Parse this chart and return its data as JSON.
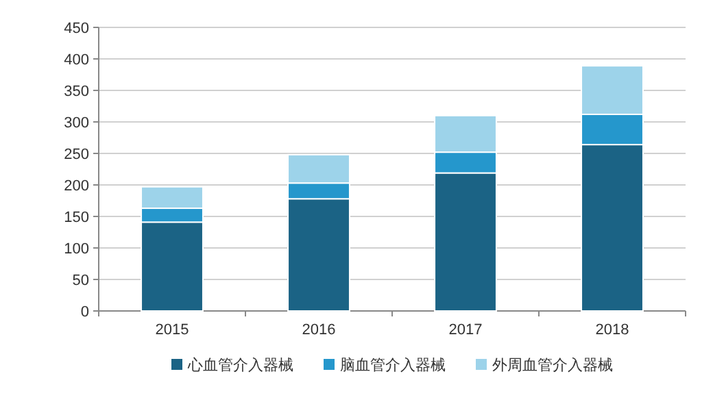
{
  "chart_data": {
    "type": "bar",
    "stacked": true,
    "categories": [
      "2015",
      "2016",
      "2017",
      "2018"
    ],
    "series": [
      {
        "name": "心血管介入器械",
        "color": "#1b6385",
        "values": [
          141,
          178,
          219,
          264
        ]
      },
      {
        "name": "脑血管介入器械",
        "color": "#2597cc",
        "values": [
          22,
          25,
          33,
          48
        ]
      },
      {
        "name": "外周血管介入器械",
        "color": "#9dd3ea",
        "values": [
          34,
          45,
          58,
          77
        ]
      }
    ],
    "ylim": [
      0,
      450
    ],
    "yticks": [
      0,
      50,
      100,
      150,
      200,
      250,
      300,
      350,
      400,
      450
    ],
    "grid": "y",
    "legend": "bottom"
  }
}
